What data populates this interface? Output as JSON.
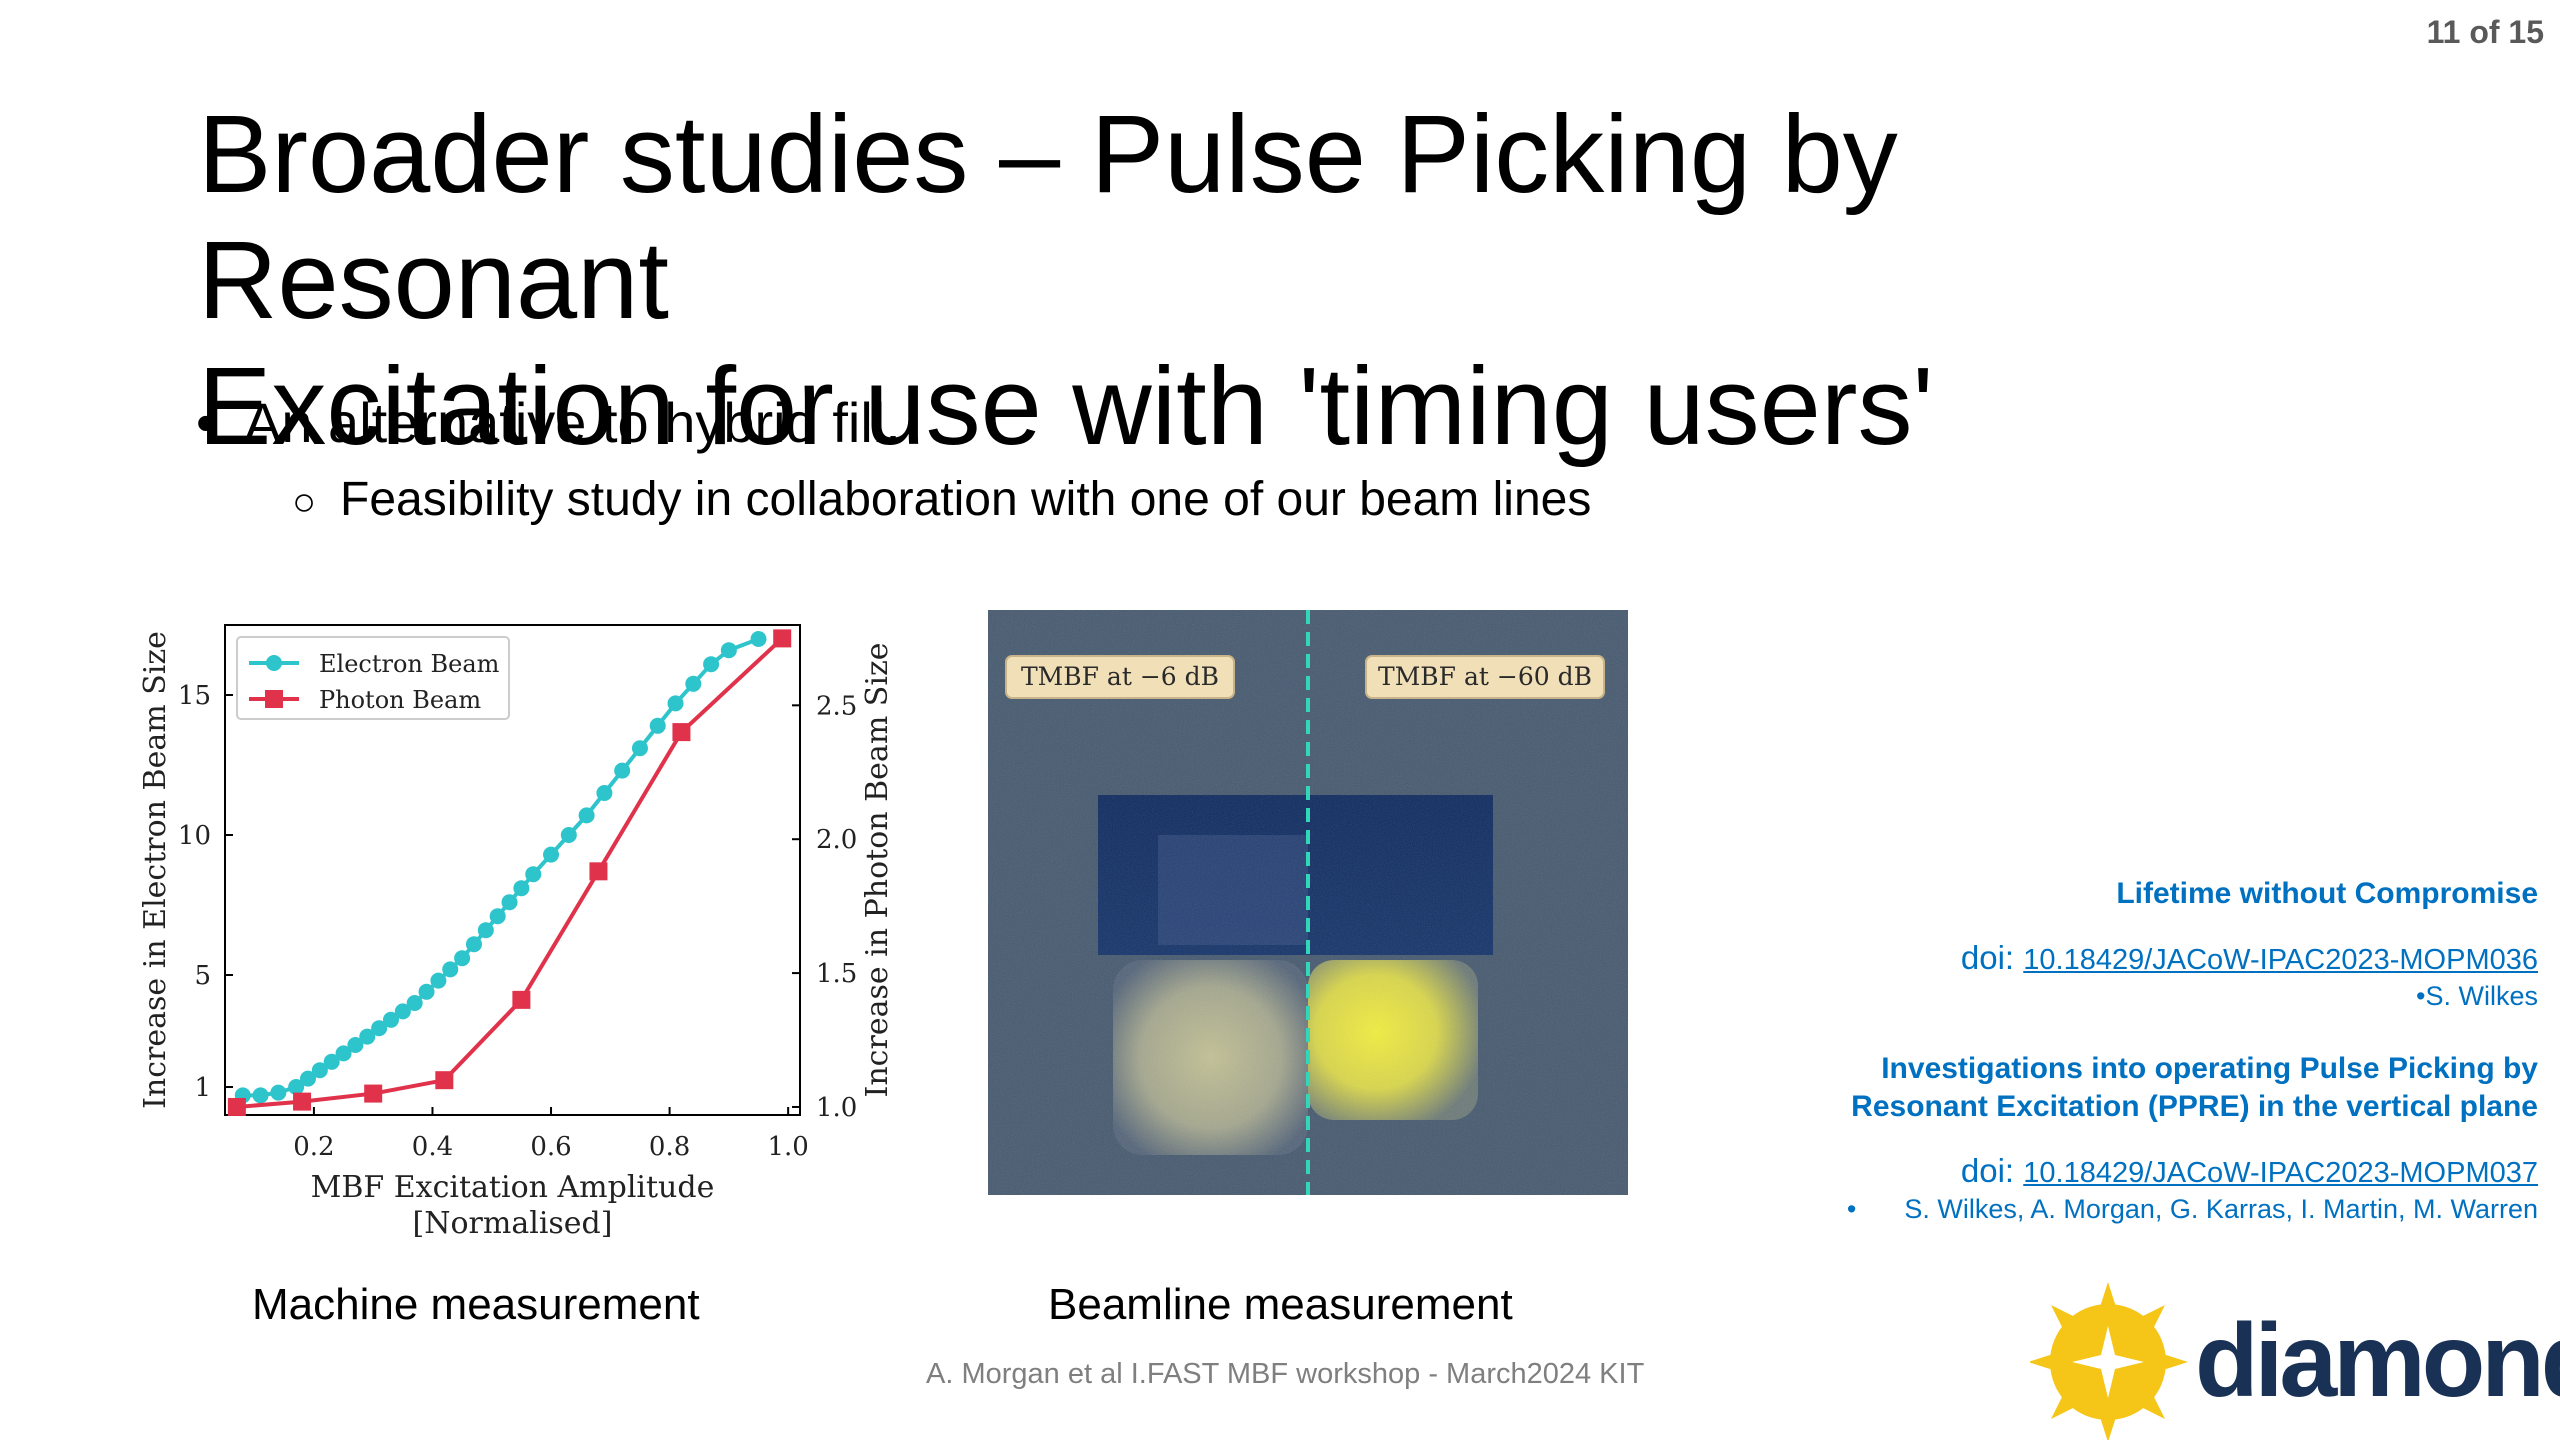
{
  "slide_number": "11 of 15",
  "title_line1": "Broader studies – Pulse Picking by Resonant",
  "title_line2": "Excitation for use with 'timing users'",
  "bullets": {
    "level1": "An alternative to hybrid fill.",
    "level2": "Feasibility study in collaboration with one of our beam lines"
  },
  "chart_data": {
    "type": "line",
    "xlabel": "MBF Excitation Amplitude",
    "xlabel2": "[Normalised]",
    "ylabel": "Increase in Electron Beam Size",
    "y2label": "Increase in Photon Beam Size",
    "xlim": [
      0.05,
      1.02
    ],
    "ylim": [
      0,
      17.5
    ],
    "y2lim": [
      0.97,
      2.8
    ],
    "x_ticks": [
      "0.2",
      "0.4",
      "0.6",
      "0.8",
      "1.0"
    ],
    "y_ticks": [
      "1",
      "5",
      "10",
      "15"
    ],
    "y2_ticks": [
      "1.0",
      "1.5",
      "2.0",
      "2.5"
    ],
    "legend_position": "top-left",
    "series": [
      {
        "name": "Electron Beam",
        "color": "#2ec4cc",
        "marker": "circle",
        "axis": "left",
        "x": [
          0.08,
          0.11,
          0.14,
          0.17,
          0.19,
          0.21,
          0.23,
          0.25,
          0.27,
          0.29,
          0.31,
          0.33,
          0.35,
          0.37,
          0.39,
          0.41,
          0.43,
          0.45,
          0.47,
          0.49,
          0.51,
          0.53,
          0.55,
          0.57,
          0.6,
          0.63,
          0.66,
          0.69,
          0.72,
          0.75,
          0.78,
          0.81,
          0.84,
          0.87,
          0.9,
          0.95
        ],
        "y": [
          0.7,
          0.7,
          0.8,
          1.0,
          1.3,
          1.6,
          1.9,
          2.2,
          2.5,
          2.8,
          3.1,
          3.4,
          3.7,
          4.0,
          4.4,
          4.8,
          5.2,
          5.6,
          6.1,
          6.6,
          7.1,
          7.6,
          8.1,
          8.6,
          9.3,
          10.0,
          10.7,
          11.5,
          12.3,
          13.1,
          13.9,
          14.7,
          15.4,
          16.1,
          16.6,
          17.0
        ]
      },
      {
        "name": "Photon Beam",
        "color": "#e0324a",
        "marker": "square",
        "axis": "right",
        "x": [
          0.07,
          0.18,
          0.3,
          0.42,
          0.55,
          0.68,
          0.82,
          0.99
        ],
        "y": [
          1.0,
          1.02,
          1.05,
          1.1,
          1.4,
          1.88,
          2.4,
          2.75
        ]
      }
    ]
  },
  "beamline_image": {
    "label_left": "TMBF at −6 dB",
    "label_right": "TMBF at −60 dB",
    "background_color": "#46596f"
  },
  "captions": {
    "machine": "Machine measurement",
    "beamline": "Beamline measurement"
  },
  "footer": "A. Morgan et al I.FAST MBF workshop - March2024 KIT",
  "references": {
    "ref1_title": "Lifetime without Compromise",
    "doi_prefix": "doi: ",
    "ref1_doi": "10.18429/JACoW-IPAC2023-MOPM036",
    "ref1_authors": "•S. Wilkes",
    "ref2_title_line1": "Investigations into operating Pulse Picking by",
    "ref2_title_line2": "Resonant Excitation (PPRE) in the vertical plane",
    "ref2_doi": "10.18429/JACoW-IPAC2023-MOPM037",
    "ref2_bullet": "•",
    "ref2_authors": "S. Wilkes, A. Morgan, G. Karras, I. Martin, M. Warren"
  },
  "logo": {
    "text": "diamond",
    "star_color": "#f5c518",
    "text_color": "#1a3156"
  }
}
